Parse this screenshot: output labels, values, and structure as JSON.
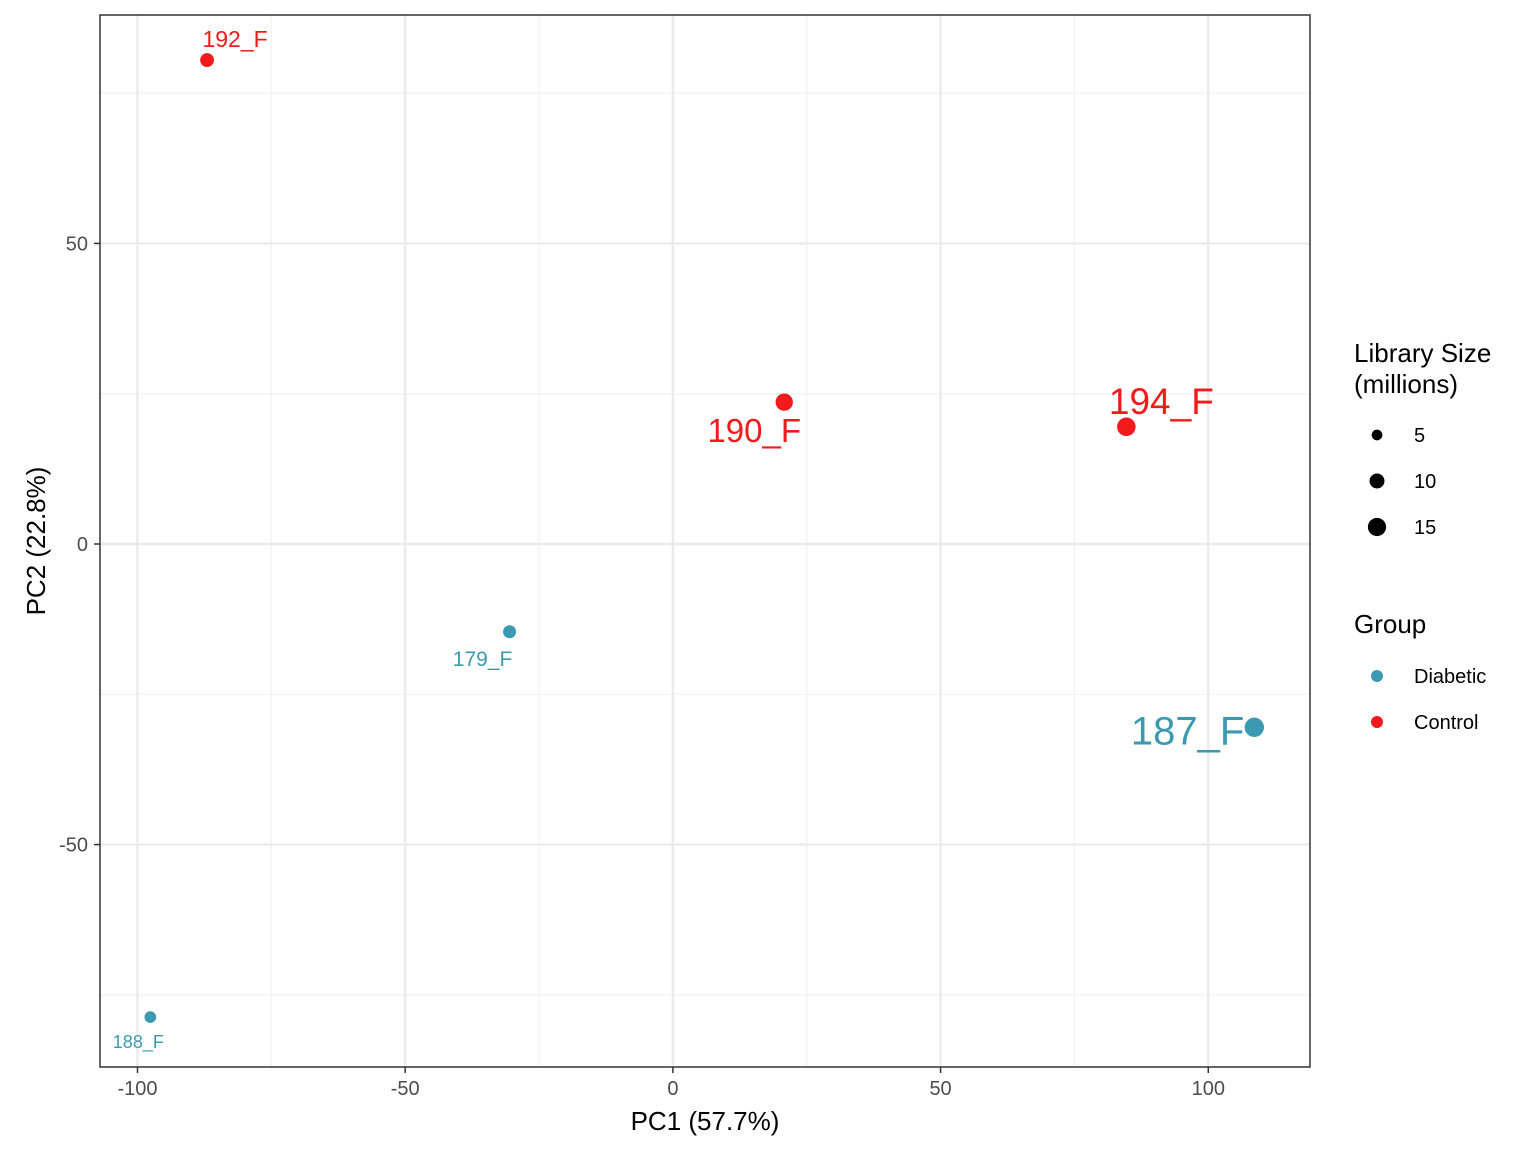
{
  "chart_data": {
    "type": "scatter",
    "xlabel": "PC1 (57.7%)",
    "ylabel": "PC2 (22.8%)",
    "xlim": [
      -107,
      119
    ],
    "ylim": [
      -87,
      88
    ],
    "x_ticks": [
      -100,
      -50,
      0,
      50,
      100
    ],
    "y_ticks": [
      -50,
      0,
      50
    ],
    "x_tick_labels": [
      "-100",
      "-50",
      "0",
      "50",
      "100"
    ],
    "y_tick_labels": [
      "-50",
      "0",
      "50"
    ],
    "grid": true,
    "legend_position": "right",
    "points": [
      {
        "label": "192_F",
        "x": -87,
        "y": 80.5,
        "group": "Control",
        "library_size": 8.5
      },
      {
        "label": "190_F",
        "x": 20.8,
        "y": 23.6,
        "group": "Control",
        "library_size": 13.5
      },
      {
        "label": "194_F",
        "x": 84.7,
        "y": 19.5,
        "group": "Control",
        "library_size": 15.5
      },
      {
        "label": "179_F",
        "x": -30.5,
        "y": -14.6,
        "group": "Diabetic",
        "library_size": 7.5
      },
      {
        "label": "187_F",
        "x": 108.6,
        "y": -30.5,
        "group": "Diabetic",
        "library_size": 17
      },
      {
        "label": "188_F",
        "x": -97.6,
        "y": -78.7,
        "group": "Diabetic",
        "library_size": 6
      }
    ],
    "size_legend": {
      "title_lines": [
        "Library Size",
        "(millions)"
      ],
      "entries": [
        {
          "label": "5",
          "value": 5
        },
        {
          "label": "10",
          "value": 10
        },
        {
          "label": "15",
          "value": 15
        }
      ]
    },
    "color_legend": {
      "title": "Group",
      "entries": [
        {
          "label": "Diabetic",
          "color": "#3b9ab2"
        },
        {
          "label": "Control",
          "color": "#f21a1a"
        }
      ]
    },
    "colors": {
      "Diabetic": "#3b9ab2",
      "Control": "#f21a1a"
    }
  }
}
